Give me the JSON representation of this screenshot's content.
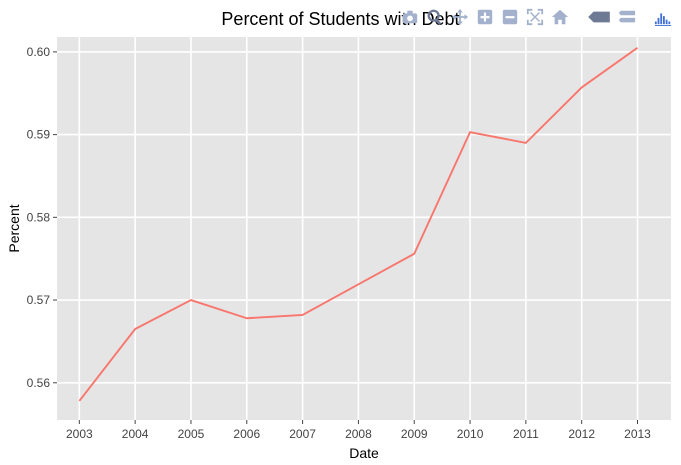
{
  "chart_data": {
    "type": "line",
    "title": "Percent of Students with Debt",
    "xlabel": "Date",
    "ylabel": "Percent",
    "x": [
      2003,
      2004,
      2005,
      2006,
      2007,
      2008,
      2009,
      2010,
      2011,
      2012,
      2013
    ],
    "series": [
      {
        "color": "#f8766d",
        "values": [
          0.5578,
          0.5665,
          0.57,
          0.5678,
          0.5682,
          0.5719,
          0.5756,
          0.5903,
          0.589,
          0.5957,
          0.6005
        ]
      }
    ],
    "xlim": [
      2002.6,
      2013.6
    ],
    "ylim": [
      0.5555,
      0.6018
    ],
    "xticks": [
      2003,
      2004,
      2005,
      2006,
      2007,
      2008,
      2009,
      2010,
      2011,
      2012,
      2013
    ],
    "xtick_labels": [
      "2003",
      "2004",
      "2005",
      "2006",
      "2007",
      "2008",
      "2009",
      "2010",
      "2011",
      "2012",
      "2013"
    ],
    "yticks": [
      0.56,
      0.57,
      0.58,
      0.59,
      0.6
    ],
    "ytick_labels": [
      "0.56",
      "0.57",
      "0.58",
      "0.59",
      "0.60"
    ],
    "grid": true,
    "panel_background": "#e5e5e5",
    "grid_color": "#ffffff"
  },
  "modebar": {
    "icons": [
      "camera-icon",
      "zoom-icon",
      "pan-icon",
      "zoom-in-icon",
      "zoom-out-icon",
      "autoscale-icon",
      "reset-axes-icon",
      "spike-lines-icon",
      "compare-hover-icon",
      "plotly-logo-icon"
    ],
    "color": "#a3b1cc",
    "active_color": "#6e7a94",
    "logo_color": "#3f6fd6"
  }
}
